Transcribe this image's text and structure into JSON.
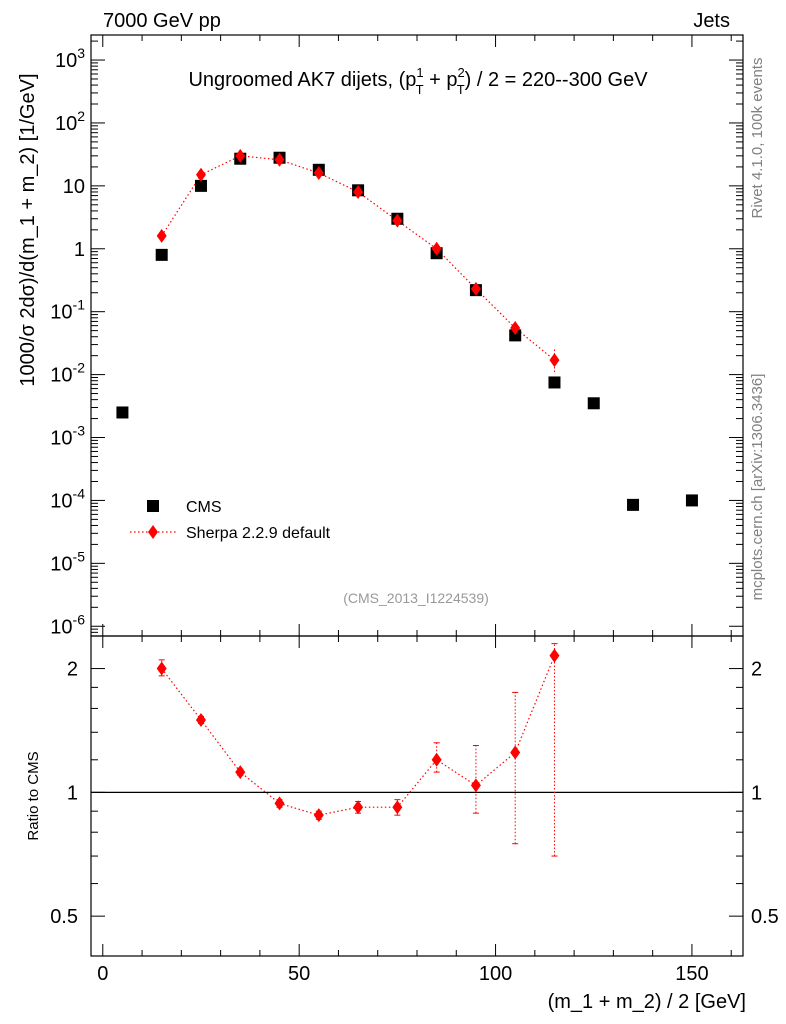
{
  "header": {
    "left": "7000 GeV pp",
    "right": "Jets",
    "rivet": "Rivet 4.1.0,  100k events",
    "mcplots": "mcplots.cern.ch [arXiv:1306.3436]",
    "analysis": "(CMS_2013_I1224539)"
  },
  "colors": {
    "data": "#000000",
    "mc": "#ff0000"
  },
  "chart_data": [
    {
      "type": "scatter",
      "panel": "main",
      "title": "Ungroomed AK7 dijets, (p_T^1 + p_T^2) / 2 = 220--300 GeV",
      "xlabel": "(m_1 + m_2) / 2 [GeV]",
      "ylabel": "1000/σ  2dσ)/d(m_1 + m_2) [1/GeV]",
      "yscale": "log",
      "xlim": [
        -3,
        163
      ],
      "ylim": [
        7e-07,
        2500
      ],
      "y_ticks": [
        "10^{-6}",
        "10^{-5}",
        "10^{-4}",
        "10^{-3}",
        "10^{-2}",
        "10^{-1}",
        "1",
        "10",
        "10^{2}",
        "10^{3}"
      ],
      "legend": [
        "CMS",
        "Sherpa 2.2.9 default"
      ],
      "series": [
        {
          "name": "CMS",
          "marker": "square",
          "x": [
            5,
            15,
            25,
            35,
            45,
            55,
            65,
            75,
            85,
            95,
            105,
            115,
            125,
            135,
            150
          ],
          "y": [
            0.0025,
            0.8,
            10,
            27,
            28,
            18,
            8.5,
            3.0,
            0.85,
            0.22,
            0.042,
            0.0075,
            0.0035,
            8.5e-05,
            0.0001
          ]
        },
        {
          "name": "Sherpa 2.2.9 default",
          "marker": "diamond",
          "line": "dotted",
          "x": [
            15,
            25,
            35,
            45,
            55,
            65,
            75,
            85,
            95,
            105,
            115
          ],
          "y": [
            1.6,
            15,
            30,
            26,
            16,
            8.0,
            2.8,
            1.0,
            0.23,
            0.055,
            0.017
          ],
          "err_low": [
            0.1,
            0.5,
            0.8,
            0.8,
            0.5,
            0.3,
            0.15,
            0.06,
            0.02,
            0.01,
            0.006
          ],
          "err_high": [
            0.1,
            0.5,
            0.8,
            0.8,
            0.5,
            0.3,
            0.15,
            0.06,
            0.02,
            0.01,
            0.01
          ]
        }
      ]
    },
    {
      "type": "line",
      "panel": "ratio",
      "xlabel": "(m_1 + m_2) / 2 [GeV]",
      "ylabel": "Ratio to CMS",
      "yscale": "log",
      "xlim": [
        -3,
        163
      ],
      "ylim": [
        0.4,
        2.4
      ],
      "y_ticks": [
        0.5,
        1,
        2
      ],
      "x_ticks": [
        0,
        50,
        100,
        150
      ],
      "reference": 1,
      "series": [
        {
          "name": "Sherpa 2.2.9 default",
          "x": [
            15,
            25,
            35,
            45,
            55,
            65,
            75,
            85,
            95,
            105,
            115
          ],
          "y": [
            2.0,
            1.5,
            1.12,
            0.94,
            0.88,
            0.92,
            0.92,
            1.2,
            1.04,
            1.25,
            2.15
          ],
          "err_low": [
            0.08,
            0.03,
            0.02,
            0.02,
            0.02,
            0.03,
            0.04,
            0.08,
            0.15,
            0.5,
            1.45
          ],
          "err_high": [
            0.1,
            0.03,
            0.02,
            0.02,
            0.02,
            0.03,
            0.04,
            0.12,
            0.26,
            0.5,
            0.15
          ]
        }
      ]
    }
  ]
}
